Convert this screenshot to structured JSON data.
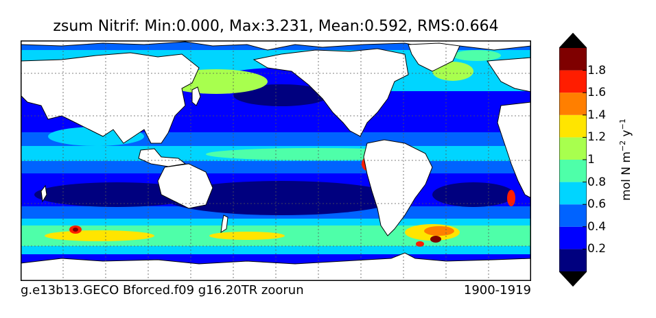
{
  "figure": {
    "title": "zsum Nitrif: Min:0.000, Max:3.231, Mean:0.592, RMS:0.664",
    "footer_left": "g.e13b13.GECO Bforced.f09 g16.20TR zoorun",
    "footer_right": "1900-1919"
  },
  "chart_data": {
    "type": "heatmap",
    "title": "zsum Nitrif: Min:0.000, Max:3.231, Mean:0.592, RMS:0.664",
    "variable": "zsum Nitrif",
    "stats": {
      "min": 0.0,
      "max": 3.231,
      "mean": 0.592,
      "rms": 0.664
    },
    "colorbar": {
      "label": "mol N m-2 y-1",
      "label_main": "mol N m",
      "label_sup1": "−2",
      "label_mid": " y",
      "label_sup2": "−1",
      "levels": [
        0,
        0.2,
        0.4,
        0.6,
        0.8,
        1.0,
        1.2,
        1.4,
        1.6,
        1.8,
        2.0
      ],
      "tick_values": [
        0.2,
        0.4,
        0.6,
        0.8,
        1.0,
        1.2,
        1.4,
        1.6,
        1.8
      ],
      "tick_labels": [
        "0.2",
        "0.4",
        "0.6",
        "0.8",
        "1",
        "1.2",
        "1.4",
        "1.6",
        "1.8"
      ],
      "colors": [
        "#00007f",
        "#0000ff",
        "#0063ff",
        "#00d5ff",
        "#4effa9",
        "#a8ff4e",
        "#ffe500",
        "#ff7f00",
        "#ff1d00",
        "#7f0000"
      ],
      "extend": "both",
      "under_color": "#000000",
      "over_color": "#000000"
    },
    "map": {
      "projection": "cylindrical",
      "lon_range": [
        20,
        380
      ],
      "lat_range": [
        -78,
        90
      ],
      "land_color": "#ffffff",
      "grid": true,
      "grid_style": "dotted"
    },
    "dataset": "g.e13b13.GECO Bforced.f09 g16.20TR zoorun",
    "period": "1900-1919"
  }
}
